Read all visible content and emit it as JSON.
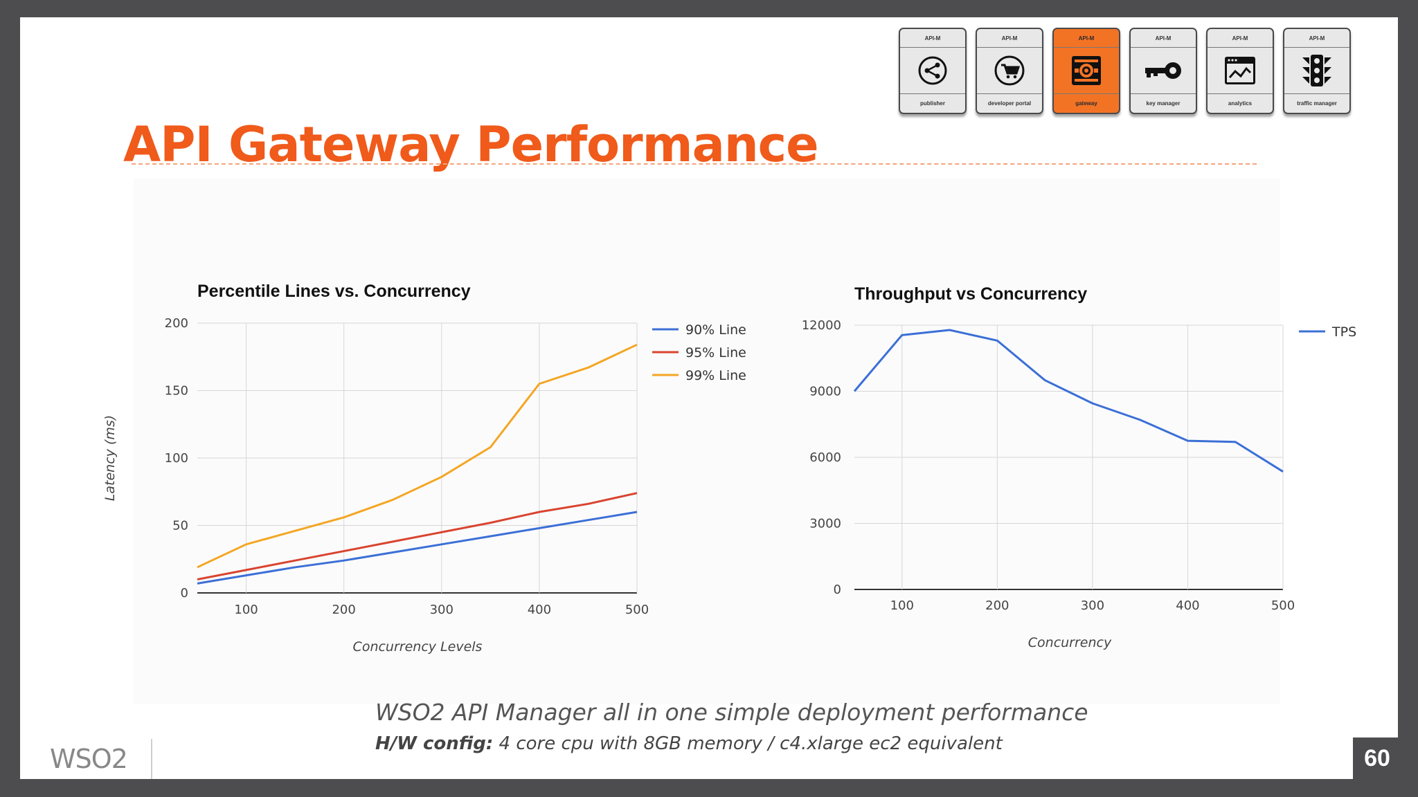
{
  "slide": {
    "title": "API Gateway Performance",
    "footer_main": "WSO2 API Manager all in one simple deployment performance",
    "footer_sub_label": "H/W config:",
    "footer_sub_text": " 4 core cpu with 8GB memory / c4.xlarge ec2 equivalent",
    "logo_text": "WSO2",
    "page_number": "60",
    "accent_color": "#f05a1a"
  },
  "modules": [
    {
      "top": "API-M",
      "label": "publisher",
      "icon": "share-icon",
      "active": false
    },
    {
      "top": "API-M",
      "label": "developer portal",
      "icon": "cart-icon",
      "active": false
    },
    {
      "top": "API-M",
      "label": "gateway",
      "icon": "gateway-icon",
      "active": true
    },
    {
      "top": "API-M",
      "label": "key manager",
      "icon": "key-icon",
      "active": false
    },
    {
      "top": "API-M",
      "label": "analytics",
      "icon": "analytics-icon",
      "active": false
    },
    {
      "top": "API-M",
      "label": "traffic manager",
      "icon": "traffic-light-icon",
      "active": false
    }
  ],
  "chart_data": [
    {
      "type": "line",
      "title": "Percentile Lines vs. Concurrency",
      "xlabel": "Concurrency Levels",
      "ylabel": "Latency (ms)",
      "x": [
        50,
        100,
        150,
        200,
        250,
        300,
        350,
        400,
        450,
        500
      ],
      "xticks": [
        100,
        200,
        300,
        400,
        500
      ],
      "yticks": [
        0,
        50,
        100,
        150,
        200
      ],
      "xlim": [
        50,
        500
      ],
      "ylim": [
        0,
        200
      ],
      "grid": true,
      "legend": "right",
      "series": [
        {
          "name": "90% Line",
          "color": "#3b6fd6",
          "values": [
            7,
            13,
            19,
            24,
            30,
            36,
            42,
            48,
            54,
            60
          ]
        },
        {
          "name": "95% Line",
          "color": "#d9442f",
          "values": [
            10,
            17,
            24,
            31,
            38,
            45,
            52,
            60,
            66,
            74
          ]
        },
        {
          "name": "99% Line",
          "color": "#f4a623",
          "values": [
            19,
            36,
            46,
            56,
            69,
            86,
            108,
            155,
            167,
            184
          ]
        }
      ]
    },
    {
      "type": "line",
      "title": "Throughput vs Concurrency",
      "xlabel": "Concurrency",
      "ylabel": "",
      "x": [
        50,
        100,
        150,
        200,
        250,
        300,
        350,
        400,
        450,
        500
      ],
      "xticks": [
        100,
        200,
        300,
        400,
        500
      ],
      "yticks": [
        0,
        3000,
        6000,
        9000,
        12000
      ],
      "xlim": [
        50,
        500
      ],
      "ylim": [
        0,
        12000
      ],
      "grid": true,
      "legend": "right",
      "series": [
        {
          "name": "TPS",
          "color": "#3b6fd6",
          "values": [
            9000,
            11550,
            11780,
            11300,
            9500,
            8450,
            7700,
            6750,
            6700,
            5350
          ]
        }
      ]
    }
  ]
}
